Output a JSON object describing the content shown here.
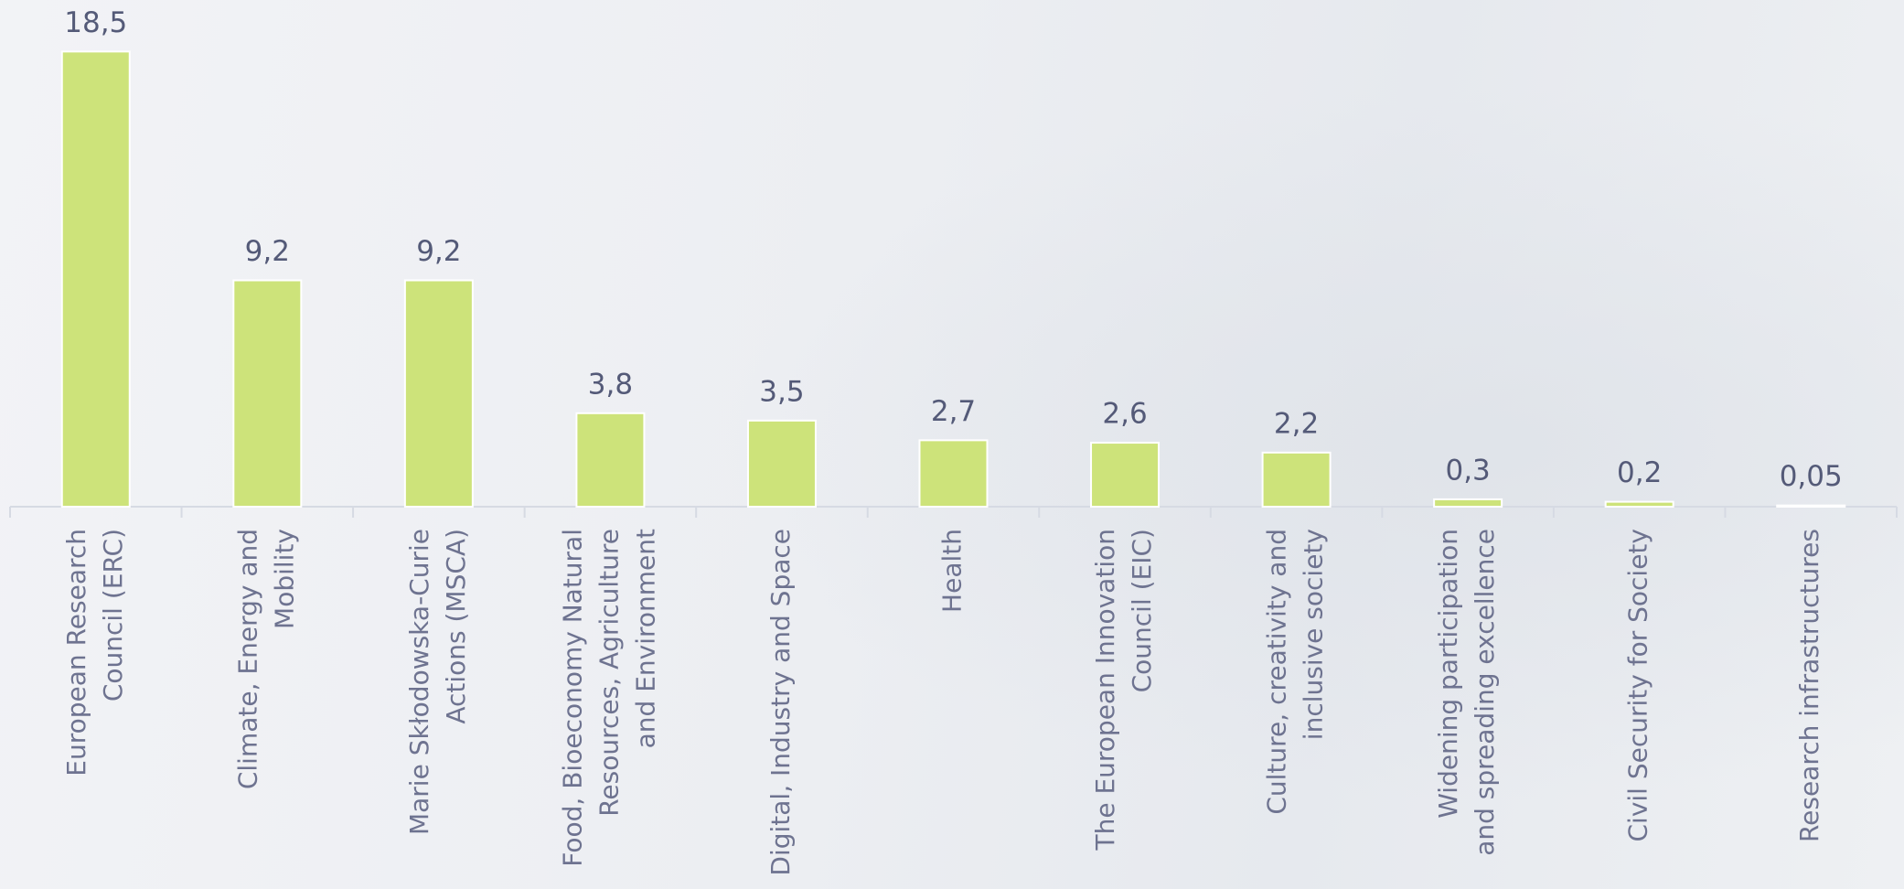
{
  "chart_data": {
    "type": "bar",
    "categories": [
      [
        "European Research",
        "Council (ERC)"
      ],
      [
        "Climate, Energy and",
        "Mobility"
      ],
      [
        "Marie Skłodowska-Curie",
        "Actions (MSCA)"
      ],
      [
        "Food, Bioeconomy Natural",
        "Resources, Agriculture",
        "and Environment"
      ],
      [
        "Digital, Industry and Space"
      ],
      [
        "Health"
      ],
      [
        "The European Innovation",
        "Council (EIC)"
      ],
      [
        "Culture, creativity and",
        "inclusive society"
      ],
      [
        "Widening participation",
        "and spreading excellence"
      ],
      [
        "Civil Security for Society"
      ],
      [
        "Research infrastructures"
      ]
    ],
    "values": [
      18.5,
      9.2,
      9.2,
      3.8,
      3.5,
      2.7,
      2.6,
      2.2,
      0.3,
      0.2,
      0.05
    ],
    "value_labels": [
      "18,5",
      "9,2",
      "9,2",
      "3,8",
      "3,5",
      "2,7",
      "2,6",
      "2,2",
      "0,3",
      "0,2",
      "0,05"
    ],
    "color": "#cde37a"
  }
}
